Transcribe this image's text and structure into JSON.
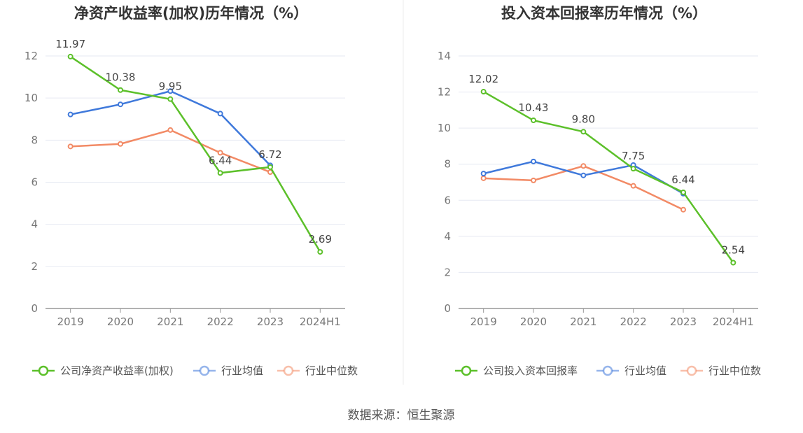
{
  "source": "数据来源：恒生聚源",
  "chart_data": [
    {
      "type": "line",
      "title": "净资产收益率(加权)历年情况（%）",
      "categories": [
        "2019",
        "2020",
        "2021",
        "2022",
        "2023",
        "2024H1"
      ],
      "ylim": [
        0,
        12
      ],
      "yticks": [
        0,
        2,
        4,
        6,
        8,
        10,
        12
      ],
      "grid": true,
      "legend_position": "bottom",
      "series": [
        {
          "name": "公司净资产收益率(加权)",
          "color": "#5cc02a",
          "values": [
            11.97,
            10.38,
            9.95,
            6.44,
            6.72,
            2.69
          ],
          "labels": [
            "11.97",
            "10.38",
            "9.95",
            "6.44",
            "6.72",
            "2.69"
          ]
        },
        {
          "name": "行业均值",
          "color": "#3f79db",
          "values": [
            9.22,
            9.7,
            10.33,
            9.26,
            6.8,
            null
          ]
        },
        {
          "name": "行业中位数",
          "color": "#f28a65",
          "values": [
            7.7,
            7.82,
            8.48,
            7.4,
            6.48,
            null
          ]
        }
      ]
    },
    {
      "type": "line",
      "title": "投入资本回报率历年情况（%）",
      "categories": [
        "2019",
        "2020",
        "2021",
        "2022",
        "2023",
        "2024H1"
      ],
      "ylim": [
        0,
        14
      ],
      "yticks": [
        0,
        2,
        4,
        6,
        8,
        10,
        12,
        14
      ],
      "grid": true,
      "legend_position": "bottom",
      "series": [
        {
          "name": "公司投入资本回报率",
          "color": "#5cc02a",
          "values": [
            12.02,
            10.43,
            9.8,
            7.75,
            6.44,
            2.54
          ],
          "labels": [
            "12.02",
            "10.43",
            "9.80",
            "7.75",
            "6.44",
            "2.54"
          ]
        },
        {
          "name": "行业均值",
          "color": "#3f79db",
          "values": [
            7.48,
            8.15,
            7.38,
            7.95,
            6.37,
            null
          ]
        },
        {
          "name": "行业中位数",
          "color": "#f28a65",
          "values": [
            7.22,
            7.1,
            7.9,
            6.8,
            5.48,
            null
          ]
        }
      ]
    }
  ]
}
